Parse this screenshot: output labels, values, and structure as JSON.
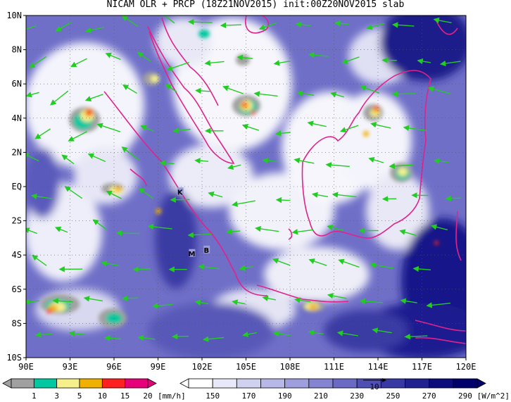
{
  "title": "NICAM OLR + PRCP (18Z21NOV2015) init:00Z20NOV2015 slab",
  "map": {
    "lat_labels": [
      "10N",
      "8N",
      "6N",
      "4N",
      "2N",
      "EQ",
      "2S",
      "4S",
      "6S",
      "8S",
      "10S"
    ],
    "lon_labels": [
      "90E",
      "93E",
      "96E",
      "99E",
      "102E",
      "105E",
      "108E",
      "111E",
      "114E",
      "117E",
      "120E"
    ],
    "lat_range": [
      -10,
      10
    ],
    "lon_range": [
      90,
      120
    ],
    "grid": "dotted",
    "coastline_color": "#e0238b",
    "wind_vector_color": "#22cc22",
    "place_markers": [
      {
        "label": "K",
        "lon": 100.5,
        "lat": -0.3
      },
      {
        "label": "M",
        "lon": 101.3,
        "lat": -3.9
      },
      {
        "label": "B",
        "lon": 102.3,
        "lat": -3.7
      }
    ]
  },
  "precip_colorbar": {
    "ticks": [
      "1",
      "3",
      "5",
      "10",
      "15",
      "20"
    ],
    "unit": "[mm/h]",
    "colors": [
      "#a0a0a0",
      "#00c8a0",
      "#f5f08c",
      "#f0b000",
      "#ff2020",
      "#e6007a"
    ]
  },
  "olr_colorbar": {
    "ticks": [
      "150",
      "170",
      "190",
      "210",
      "230",
      "250",
      "270",
      "290"
    ],
    "unit": "[W/m^2]",
    "colors": [
      "#ffffff",
      "#e8e8f8",
      "#d0d0f0",
      "#b8b8e8",
      "#9e9ede",
      "#8484d2",
      "#6a6ac4",
      "#5050b4",
      "#3838a4",
      "#202090",
      "#0c0c7c",
      "#00006c"
    ]
  },
  "vector_reference": "10"
}
